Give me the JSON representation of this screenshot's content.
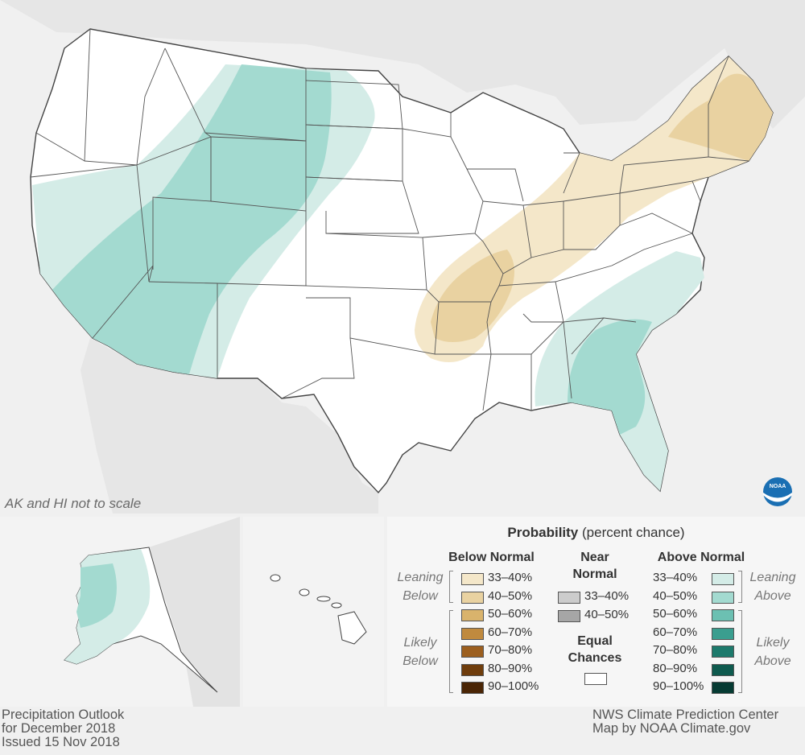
{
  "map": {
    "note": "AK and HI not to scale",
    "colors": {
      "background": "#f0f0f0",
      "land": "#ffffff",
      "neighbor_land": "#e3e3e3",
      "state_line": "#555555",
      "above_33_40": "#d4ece7",
      "above_40_50": "#a3dad0",
      "below_33_40": "#f4e7c9",
      "below_40_50": "#e9d2a1",
      "noaa_blue": "#1a6fb3"
    },
    "logo_text": "NOAA"
  },
  "legend": {
    "title_bold": "Probability",
    "title_rest": "(percent chance)",
    "below_normal": {
      "heading": "Below Normal",
      "leaning_label": "Leaning Below",
      "likely_label": "Likely Below",
      "rows": [
        "33–40%",
        "40–50%",
        "50–60%",
        "60–70%",
        "70–80%",
        "80–90%",
        "90–100%"
      ],
      "colors": [
        "#f4e7c9",
        "#e9d2a1",
        "#d9b36c",
        "#c08a3e",
        "#9c5f1f",
        "#6f3d0c",
        "#4a2505"
      ]
    },
    "near_normal": {
      "heading_line1": "Near",
      "heading_line2": "Normal",
      "rows": [
        "33–40%",
        "40–50%"
      ],
      "colors": [
        "#cccccc",
        "#a6a6a6"
      ]
    },
    "equal_chances": {
      "line1": "Equal",
      "line2": "Chances",
      "color": "#ffffff"
    },
    "above_normal": {
      "heading": "Above Normal",
      "leaning_label": "Leaning Above",
      "likely_label": "Likely Above",
      "rows": [
        "33–40%",
        "40–50%",
        "50–60%",
        "60–70%",
        "70–80%",
        "80–90%",
        "90–100%"
      ],
      "colors": [
        "#d4ece7",
        "#a3dad0",
        "#6cc0b2",
        "#3a9e8f",
        "#1d7a6c",
        "#0e5a4e",
        "#063b33"
      ]
    }
  },
  "footer": {
    "left": [
      "Precipitation Outlook",
      "for December 2018",
      "Issued 15 Nov 2018"
    ],
    "right": [
      "NWS Climate Prediction Center",
      "Map by NOAA Climate.gov"
    ]
  }
}
